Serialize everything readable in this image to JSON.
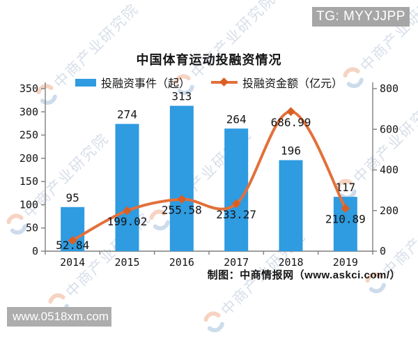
{
  "badges": {
    "tg": "TG: MYYJJPP",
    "site": "www.0518xm.com"
  },
  "watermark": {
    "text": "中商产业研究院"
  },
  "footer": {
    "credit": "制图：中商情报网（www.askci.com/）"
  },
  "chart_data": {
    "type": "bar+line",
    "title": "中国体育运动投融资情况",
    "categories": [
      "2014",
      "2015",
      "2016",
      "2017",
      "2018",
      "2019"
    ],
    "series": [
      {
        "name": "投融资事件（起）",
        "type": "bar",
        "axis": "left",
        "values": [
          95,
          274,
          313,
          264,
          196,
          117
        ]
      },
      {
        "name": "投融资金额（亿元）",
        "type": "line",
        "axis": "right",
        "values": [
          52.84,
          199.02,
          255.58,
          233.27,
          686.99,
          210.89
        ]
      }
    ],
    "left_axis": {
      "min": 0,
      "max": 350,
      "ticks": [
        0,
        50,
        100,
        150,
        200,
        250,
        300,
        350
      ]
    },
    "right_axis": {
      "min": 0,
      "max": 800,
      "ticks": [
        0,
        200,
        400,
        600,
        800
      ]
    },
    "legend_position": "top",
    "grid": false,
    "colors": {
      "bar": "#2F9BE0",
      "line": "#E2703A",
      "line_marker": "#D95F25",
      "axis": "#7F7F7F",
      "text": "#141414",
      "badge_bg": "#A6A6A6",
      "watermark": "#7E95B8"
    }
  }
}
